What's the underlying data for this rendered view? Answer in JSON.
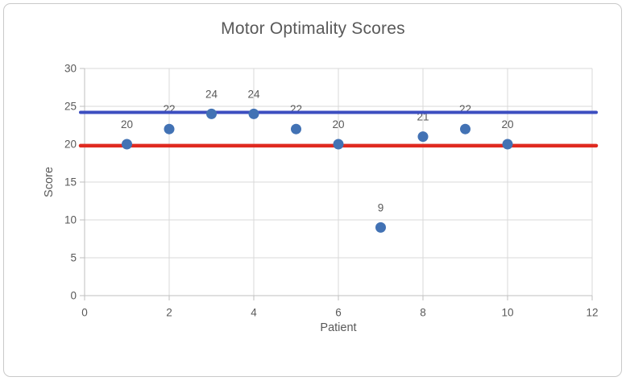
{
  "chart_data": {
    "type": "scatter",
    "title": "Motor Optimality Scores",
    "xlabel": "Patient",
    "ylabel": "Score",
    "xlim": [
      0,
      12
    ],
    "ylim": [
      0,
      30
    ],
    "xticks": [
      0,
      2,
      4,
      6,
      8,
      10,
      12
    ],
    "yticks": [
      0,
      5,
      10,
      15,
      20,
      25,
      30
    ],
    "grid": true,
    "legend": false,
    "series": [
      {
        "name": "patient-scores",
        "color": "#4272b4",
        "marker_radius": 6.5,
        "points": [
          {
            "x": 1,
            "y": 20,
            "label": "20"
          },
          {
            "x": 2,
            "y": 22,
            "label": "22"
          },
          {
            "x": 3,
            "y": 24,
            "label": "24"
          },
          {
            "x": 4,
            "y": 24,
            "label": "24"
          },
          {
            "x": 5,
            "y": 22,
            "label": "22"
          },
          {
            "x": 6,
            "y": 20,
            "label": "20"
          },
          {
            "x": 7,
            "y": 9,
            "label": "9"
          },
          {
            "x": 8,
            "y": 21,
            "label": "21"
          },
          {
            "x": 9,
            "y": 22,
            "label": "22"
          },
          {
            "x": 10,
            "y": 20,
            "label": "20"
          }
        ]
      }
    ],
    "reference_lines": [
      {
        "name": "upper-reference-line",
        "value": 24.2,
        "color": "#3c4ec0",
        "width": 4
      },
      {
        "name": "lower-reference-line",
        "value": 19.8,
        "color": "#e02a20",
        "width": 4.5
      }
    ],
    "colors": {
      "text": "#595959",
      "gridline": "#d9d9d9",
      "axis": "#bfbfbf"
    }
  }
}
